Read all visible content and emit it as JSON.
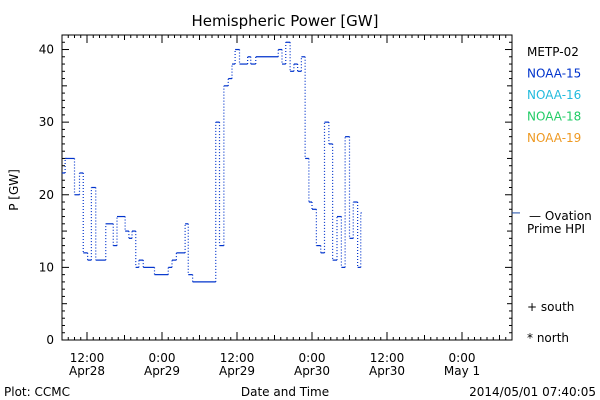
{
  "chart_data": {
    "type": "line",
    "title": "Hemispheric Power [GW]",
    "ylabel": "P [GW]",
    "xlabel": "Date and Time",
    "ylim": [
      0,
      42
    ],
    "yticks": [
      0,
      10,
      20,
      30,
      40
    ],
    "xlim_hours": [
      0,
      72
    ],
    "xticks": [
      {
        "h": 4,
        "label": "12:00",
        "date": "Apr28"
      },
      {
        "h": 16,
        "label": "0:00",
        "date": "Apr29"
      },
      {
        "h": 28,
        "label": "12:00",
        "date": "Apr29"
      },
      {
        "h": 40,
        "label": "0:00",
        "date": "Apr30"
      },
      {
        "h": 52,
        "label": "12:00",
        "date": "Apr30"
      },
      {
        "h": 64,
        "label": "0:00",
        "date": "May 1"
      }
    ],
    "legend": [
      {
        "name": "METP-02",
        "color": "#000000"
      },
      {
        "name": "NOAA-15",
        "color": "#0033cc"
      },
      {
        "name": "NOAA-16",
        "color": "#22bbdd"
      },
      {
        "name": "NOAA-18",
        "color": "#22cc66"
      },
      {
        "name": "NOAA-19",
        "color": "#ee9922"
      }
    ],
    "ovation": {
      "label1": "— Ovation",
      "label2": "Prime HPI",
      "value": 17.5,
      "color": "#1a4aa8"
    },
    "markers": {
      "south": "+ south",
      "north": "* north"
    },
    "series": [
      {
        "name": "NOAA-15",
        "color": "#0033cc",
        "points": [
          [
            0,
            23
          ],
          [
            0.5,
            25
          ],
          [
            2,
            20
          ],
          [
            2.8,
            23
          ],
          [
            3.4,
            12
          ],
          [
            4.1,
            11
          ],
          [
            4.7,
            21
          ],
          [
            5.4,
            11
          ],
          [
            7,
            16
          ],
          [
            8.2,
            13
          ],
          [
            8.8,
            17
          ],
          [
            10.1,
            15
          ],
          [
            10.7,
            14
          ],
          [
            11.2,
            15
          ],
          [
            11.8,
            10
          ],
          [
            12.3,
            11
          ],
          [
            13,
            10
          ],
          [
            14.8,
            9
          ],
          [
            17,
            10
          ],
          [
            17.6,
            11
          ],
          [
            18.3,
            12
          ],
          [
            19.7,
            16
          ],
          [
            20.2,
            9
          ],
          [
            20.9,
            8
          ],
          [
            24.6,
            30
          ],
          [
            25.2,
            13
          ],
          [
            25.9,
            35
          ],
          [
            26.6,
            36
          ],
          [
            27.2,
            38
          ],
          [
            27.7,
            40
          ],
          [
            28.4,
            38
          ],
          [
            29.7,
            39
          ],
          [
            30.2,
            38
          ],
          [
            31,
            39
          ],
          [
            34.6,
            40
          ],
          [
            35.2,
            38
          ],
          [
            35.8,
            41
          ],
          [
            36.5,
            37
          ],
          [
            37.1,
            38
          ],
          [
            37.7,
            37
          ],
          [
            38.3,
            39
          ],
          [
            38.9,
            25
          ],
          [
            39.5,
            19
          ],
          [
            40,
            18
          ],
          [
            40.7,
            13
          ],
          [
            41.4,
            12
          ],
          [
            42,
            30
          ],
          [
            42.7,
            27
          ],
          [
            43.3,
            11
          ],
          [
            44,
            17
          ],
          [
            44.7,
            10
          ],
          [
            45.3,
            28
          ],
          [
            46,
            14
          ],
          [
            46.6,
            19
          ],
          [
            47.3,
            10
          ],
          [
            47.8,
            17.5
          ]
        ]
      }
    ]
  },
  "footer": {
    "left": "Plot: CCMC",
    "right": "2014/05/01 07:40:05"
  }
}
